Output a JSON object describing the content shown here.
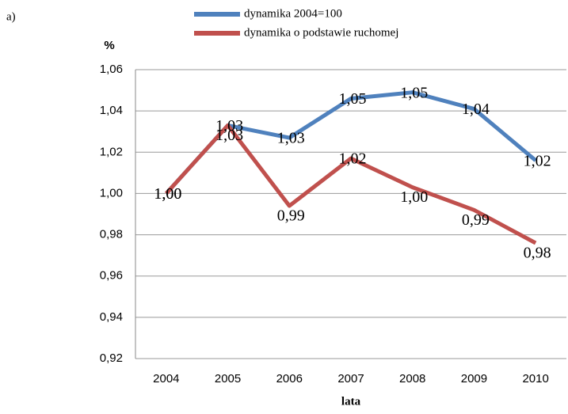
{
  "chart_data": {
    "type": "line",
    "annotation": "a)",
    "y_label": "%",
    "x_label": "lata",
    "categories": [
      "2004",
      "2005",
      "2006",
      "2007",
      "2008",
      "2009",
      "2010"
    ],
    "series": [
      {
        "name": "dynamika 2004=100",
        "color": "#4f81bd",
        "values": [
          1.0,
          1.033,
          1.027,
          1.046,
          1.049,
          1.041,
          1.016
        ],
        "value_labels": [
          "1,00",
          "1,03",
          "1,03",
          "1,05",
          "1,05",
          "1,04",
          "1,02"
        ]
      },
      {
        "name": "dynamika o podstawie ruchomej",
        "color": "#c0504d",
        "values": [
          1.0,
          1.033,
          0.994,
          1.017,
          1.003,
          0.992,
          0.976
        ],
        "value_labels": [
          "1,00",
          "1,03",
          "0,99",
          "1,02",
          "1,00",
          "0,99",
          "0,98"
        ]
      }
    ],
    "ylim": [
      0.92,
      1.06
    ],
    "yticks": [
      {
        "value": 0.92,
        "label": "0,92"
      },
      {
        "value": 0.94,
        "label": "0,94"
      },
      {
        "value": 0.96,
        "label": "0,96"
      },
      {
        "value": 0.98,
        "label": "0,98"
      },
      {
        "value": 1.0,
        "label": "1,00"
      },
      {
        "value": 1.02,
        "label": "1,02"
      },
      {
        "value": 1.04,
        "label": "1,04"
      },
      {
        "value": 1.06,
        "label": "1,06"
      }
    ],
    "grid": true
  }
}
